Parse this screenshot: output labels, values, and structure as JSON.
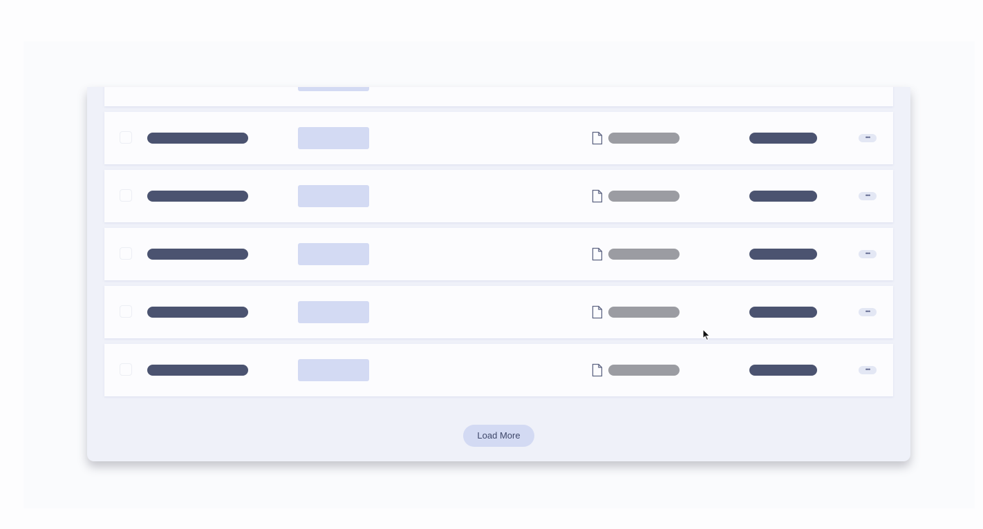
{
  "table": {
    "rows": [
      {
        "file_icon": "file-icon",
        "menu_icon": "more-horizontal-icon",
        "menu_label": "•••"
      },
      {
        "file_icon": "file-icon",
        "menu_icon": "more-horizontal-icon",
        "menu_label": "•••"
      },
      {
        "file_icon": "file-icon",
        "menu_icon": "more-horizontal-icon",
        "menu_label": "•••"
      },
      {
        "file_icon": "file-icon",
        "menu_icon": "more-horizontal-icon",
        "menu_label": "•••"
      },
      {
        "file_icon": "file-icon",
        "menu_icon": "more-horizontal-icon",
        "menu_label": "•••"
      },
      {
        "file_icon": "file-icon",
        "menu_icon": "more-horizontal-icon",
        "menu_label": "•••"
      }
    ]
  },
  "footer": {
    "load_more_label": "Load More"
  },
  "colors": {
    "accent": "#d3daf3",
    "text_dark": "#4b5370",
    "placeholder_grey": "#9b9ca2"
  }
}
